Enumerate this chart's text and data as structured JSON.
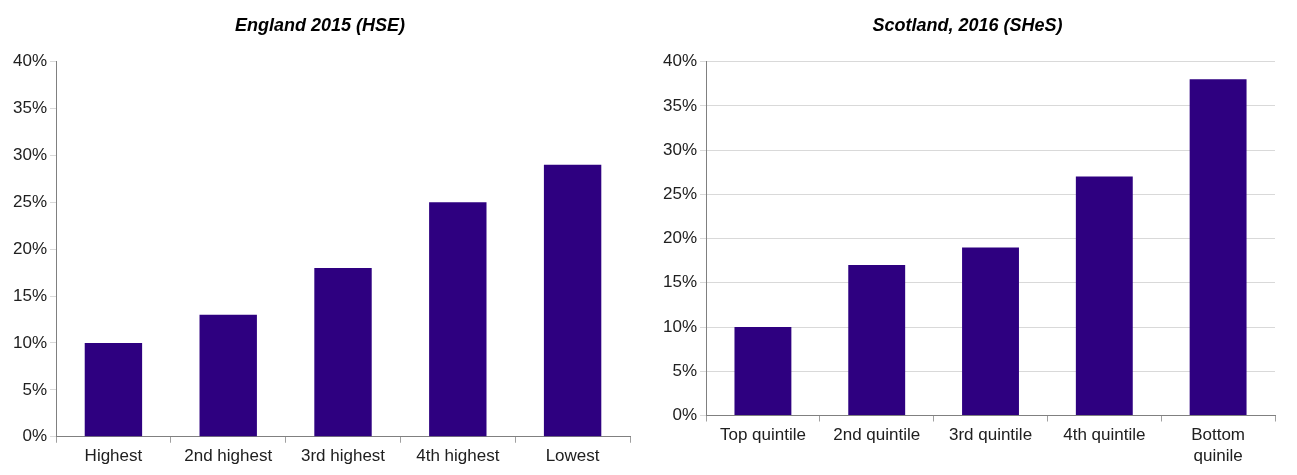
{
  "chart_data": [
    {
      "type": "bar",
      "title": "England 2015 (HSE)",
      "categories": [
        "Highest",
        "2nd highest",
        "3rd highest",
        "4th highest",
        "Lowest"
      ],
      "values": [
        10,
        13,
        18,
        25,
        29
      ],
      "color": "#2e0080",
      "ylim": [
        0,
        40
      ],
      "yticks": [
        {
          "value": 0,
          "label": "0%"
        },
        {
          "value": 5,
          "label": "5%"
        },
        {
          "value": 10,
          "label": "10%"
        },
        {
          "value": 15,
          "label": "15%"
        },
        {
          "value": 20,
          "label": "20%"
        },
        {
          "value": 25,
          "label": "25%"
        },
        {
          "value": 30,
          "label": "30%"
        },
        {
          "value": 35,
          "label": "35%"
        },
        {
          "value": 40,
          "label": "40%"
        }
      ],
      "grid": false
    },
    {
      "type": "bar",
      "title": "Scotland, 2016 (SHeS)",
      "categories": [
        "Top quintile",
        "2nd quintile",
        "3rd quintile",
        "4th quintile",
        "Bottom quinile"
      ],
      "values": [
        10,
        17,
        19,
        27,
        38
      ],
      "color": "#2e0080",
      "ylim": [
        0,
        40
      ],
      "yticks": [
        {
          "value": 0,
          "label": "0%"
        },
        {
          "value": 5,
          "label": "5%"
        },
        {
          "value": 10,
          "label": "10%"
        },
        {
          "value": 15,
          "label": "15%"
        },
        {
          "value": 20,
          "label": "20%"
        },
        {
          "value": 25,
          "label": "25%"
        },
        {
          "value": 30,
          "label": "30%"
        },
        {
          "value": 35,
          "label": "35%"
        },
        {
          "value": 40,
          "label": "40%"
        }
      ],
      "grid": "y"
    }
  ]
}
